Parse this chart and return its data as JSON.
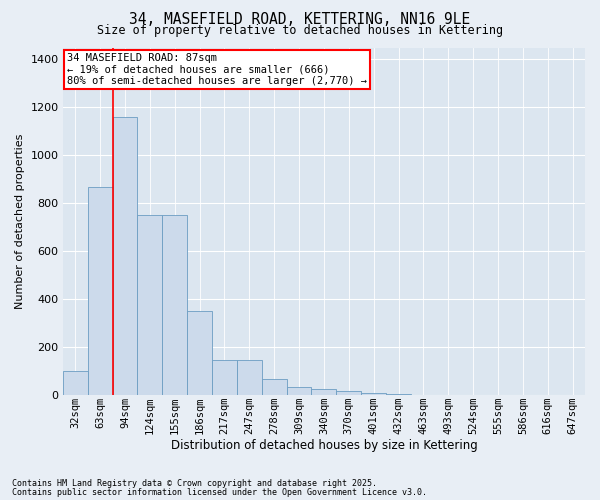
{
  "title": "34, MASEFIELD ROAD, KETTERING, NN16 9LE",
  "subtitle": "Size of property relative to detached houses in Kettering",
  "xlabel": "Distribution of detached houses by size in Kettering",
  "ylabel": "Number of detached properties",
  "bar_color": "#ccdaeb",
  "bar_edge_color": "#6b9dc2",
  "background_color": "#dce6f0",
  "fig_background": "#e8eef5",
  "grid_color": "#ffffff",
  "categories": [
    "32sqm",
    "63sqm",
    "94sqm",
    "124sqm",
    "155sqm",
    "186sqm",
    "217sqm",
    "247sqm",
    "278sqm",
    "309sqm",
    "340sqm",
    "370sqm",
    "401sqm",
    "432sqm",
    "463sqm",
    "493sqm",
    "524sqm",
    "555sqm",
    "586sqm",
    "616sqm",
    "647sqm"
  ],
  "values": [
    100,
    870,
    1160,
    750,
    750,
    350,
    145,
    145,
    65,
    35,
    25,
    18,
    10,
    3,
    2,
    1,
    0,
    0,
    0,
    0,
    0
  ],
  "ylim": [
    0,
    1450
  ],
  "yticks": [
    0,
    200,
    400,
    600,
    800,
    1000,
    1200,
    1400
  ],
  "red_line_x": 1.5,
  "annotation_text": "34 MASEFIELD ROAD: 87sqm\n← 19% of detached houses are smaller (666)\n80% of semi-detached houses are larger (2,770) →",
  "footer_line1": "Contains HM Land Registry data © Crown copyright and database right 2025.",
  "footer_line2": "Contains public sector information licensed under the Open Government Licence v3.0."
}
